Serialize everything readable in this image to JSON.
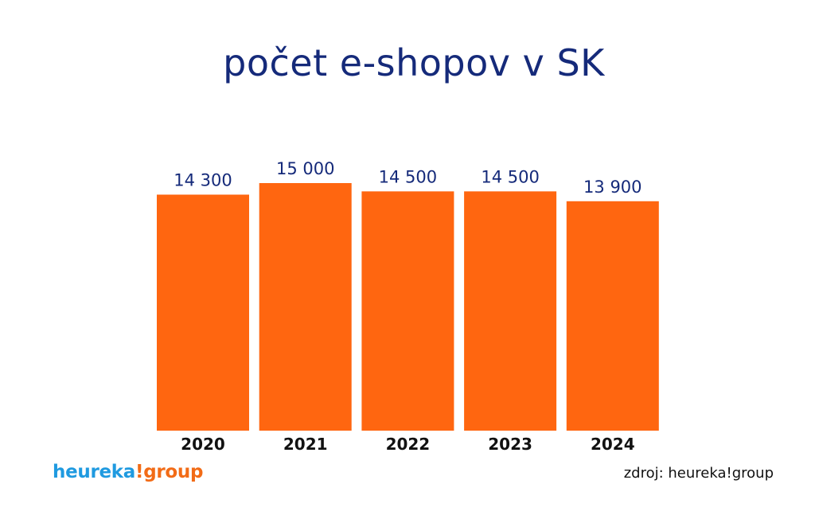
{
  "chart_data": {
    "type": "bar",
    "title": "počet e-shopov v SK",
    "categories": [
      "2020",
      "2021",
      "2022",
      "2023",
      "2024"
    ],
    "values": [
      14300,
      15000,
      14500,
      14500,
      13900
    ],
    "value_labels": [
      "14 300",
      "15 000",
      "14 500",
      "14 500",
      "13 900"
    ],
    "xlabel": "",
    "ylabel": "",
    "ylim": [
      0,
      15000
    ],
    "grid": false,
    "bar_color": "#ff6610",
    "label_color": "#152a7a"
  },
  "logo": {
    "part1": "heureka",
    "part2": "!group",
    "color1": "#1f9ae0",
    "color2": "#f26b16"
  },
  "source": "zdroj: heureka!group"
}
